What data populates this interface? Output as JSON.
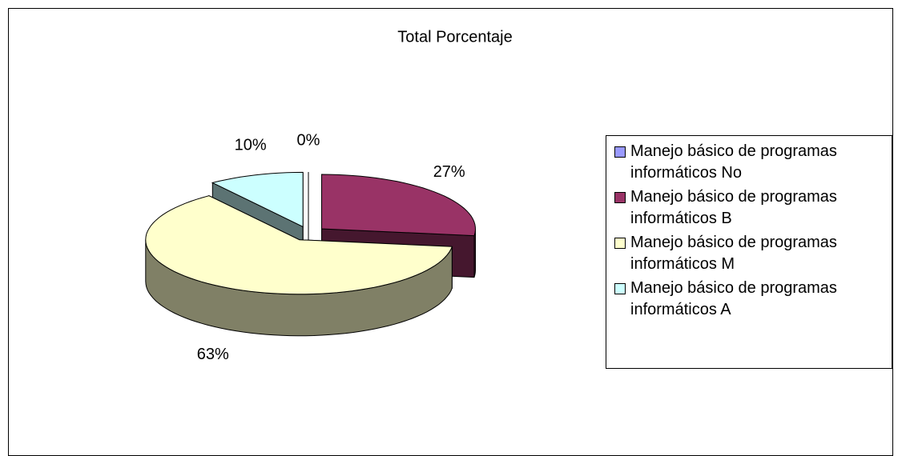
{
  "chart_data": {
    "type": "pie3d",
    "title": "Total Porcentaje",
    "categories": [
      "Manejo básico de programas informáticos No",
      "Manejo básico de programas informáticos B",
      "Manejo básico de programas informáticos M",
      "Manejo básico de programas informáticos A"
    ],
    "values": [
      0,
      27,
      63,
      10
    ],
    "value_labels": [
      "0%",
      "27%",
      "63%",
      "10%"
    ],
    "colors": [
      "#9999ff",
      "#993366",
      "#ffffcc",
      "#ccffff"
    ],
    "legend": "right"
  }
}
